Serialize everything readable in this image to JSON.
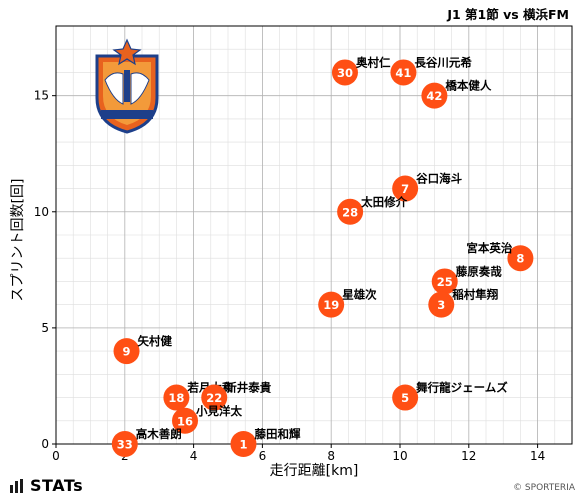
{
  "header": {
    "title": "J1 第1節 vs 横浜FM"
  },
  "footer": {
    "brand": "STATs",
    "credit": "© SPORTERIA"
  },
  "icons": {
    "brand_icon": "stats-bars-icon",
    "team_logo": "albirex-crest-icon"
  },
  "colors": {
    "marker": "#ff4f14",
    "marker_text": "#ffffff",
    "grid_major": "#b3b3b3",
    "grid_minor": "#dedede"
  },
  "chart_data": {
    "type": "scatter",
    "xlabel": "走行距離[km]",
    "ylabel": "スプリント回数[回]",
    "xlim": [
      0,
      15
    ],
    "ylim": [
      0,
      18
    ],
    "xticks": [
      0,
      2,
      4,
      6,
      8,
      10,
      12,
      14
    ],
    "yticks": [
      0,
      5,
      10,
      15
    ],
    "grid": true,
    "points": [
      {
        "number": "30",
        "name": "奥村仁",
        "x": 8.4,
        "y": 16
      },
      {
        "number": "41",
        "name": "長谷川元希",
        "x": 10.1,
        "y": 16
      },
      {
        "number": "42",
        "name": "橋本健人",
        "x": 11.0,
        "y": 15
      },
      {
        "number": "7",
        "name": "谷口海斗",
        "x": 10.15,
        "y": 11
      },
      {
        "number": "28",
        "name": "太田修介",
        "x": 8.55,
        "y": 10
      },
      {
        "number": "8",
        "name": "宮本英治",
        "x": 13.5,
        "y": 8
      },
      {
        "number": "25",
        "name": "藤原奏哉",
        "x": 11.3,
        "y": 7
      },
      {
        "number": "3",
        "name": "稲村隼翔",
        "x": 11.2,
        "y": 6
      },
      {
        "number": "19",
        "name": "星雄次",
        "x": 8.0,
        "y": 6
      },
      {
        "number": "9",
        "name": "矢村健",
        "x": 2.05,
        "y": 4
      },
      {
        "number": "18",
        "name": "若月大和",
        "x": 3.5,
        "y": 2
      },
      {
        "number": "22",
        "name": "新井泰貴",
        "x": 4.6,
        "y": 2
      },
      {
        "number": "5",
        "name": "舞行龍ジェームズ",
        "x": 10.15,
        "y": 2
      },
      {
        "number": "16",
        "name": "小見洋太",
        "x": 3.75,
        "y": 1
      },
      {
        "number": "33",
        "name": "高木善朗",
        "x": 2.0,
        "y": 0
      },
      {
        "number": "1",
        "name": "藤田和輝",
        "x": 5.45,
        "y": 0
      }
    ]
  }
}
